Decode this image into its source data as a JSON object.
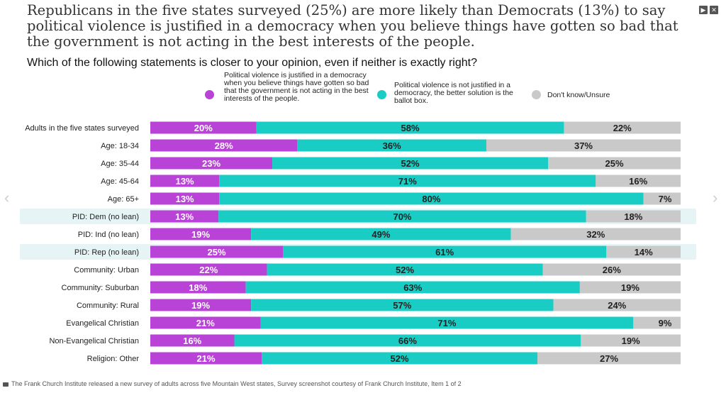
{
  "header": {
    "title": "Republicans in the five states surveyed (25%) are more likely than Democrats (13%) to say political violence is justified in a democracy when you believe things have gotten so bad that the government is not acting in the best interests of the people.",
    "subtitle": "Which of the following statements is closer to your opinion, even if neither is exactly right?",
    "play_label": "▶",
    "close_label": "✕"
  },
  "nav": {
    "prev_label": "‹",
    "next_label": "›"
  },
  "caption": "The Frank Church Institute released a new survey of adults across five Mountain West states, Survey screenshot courtesy of Frank Church Institute, Item 1 of 2",
  "chart_data": {
    "type": "bar",
    "orientation": "horizontal",
    "stacked": true,
    "percent_stacked": true,
    "categories": [
      "Adults in the five states surveyed",
      "Age: 18-34",
      "Age: 35-44",
      "Age: 45-64",
      "Age: 65+",
      "PID: Dem (no lean)",
      "PID: Ind (no lean)",
      "PID: Rep (no lean)",
      "Community: Urban",
      "Community: Suburban",
      "Community: Rural",
      "Evangelical Christian",
      "Non-Evangelical Christian",
      "Religion: Other"
    ],
    "highlighted_categories": [
      "PID: Dem (no lean)",
      "PID: Rep (no lean)"
    ],
    "series": [
      {
        "name": "Political violence is justified in a democracy when you believe things have gotten so bad that the government is not acting in the best interests of the people.",
        "color": "#b843d6",
        "values": [
          20,
          28,
          23,
          13,
          13,
          13,
          19,
          25,
          22,
          18,
          19,
          21,
          16,
          21
        ]
      },
      {
        "name": "Political violence is not justified in a democracy, the better solution is the ballot box.",
        "color": "#19cdc4",
        "values": [
          58,
          36,
          52,
          71,
          80,
          70,
          49,
          61,
          52,
          63,
          57,
          71,
          66,
          52
        ]
      },
      {
        "name": "Don't know/Unsure",
        "color": "#c9c9c9",
        "values": [
          22,
          37,
          25,
          16,
          7,
          18,
          32,
          14,
          26,
          19,
          24,
          9,
          19,
          27
        ]
      }
    ],
    "value_suffix": "%",
    "legend_position": "top",
    "grid": false
  }
}
